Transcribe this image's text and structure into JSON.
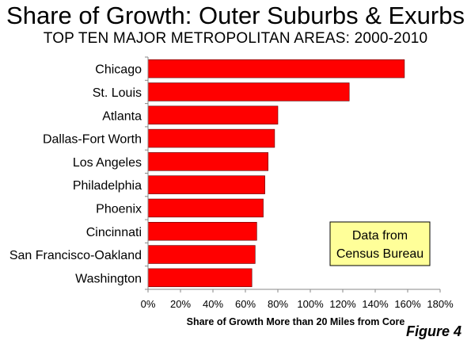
{
  "chart_data": {
    "type": "bar",
    "orientation": "horizontal",
    "title": "Share of Growth: Outer Suburbs & Exurbs",
    "subtitle": "TOP TEN MAJOR METROPOLITAN AREAS: 2000-2010",
    "categories": [
      "Chicago",
      "St. Louis",
      "Atlanta",
      "Dallas-Fort Worth",
      "Los Angeles",
      "Philadelphia",
      "Phoenix",
      "Cincinnati",
      "San Francisco-Oakland",
      "Washington"
    ],
    "values": [
      158,
      124,
      80,
      78,
      74,
      72,
      71,
      67,
      66,
      64
    ],
    "xlabel": "Share of Growth More than 20 Miles from Core",
    "ylabel": "",
    "xlim": [
      0,
      180
    ],
    "x_ticks": [
      "0%",
      "20%",
      "40%",
      "60%",
      "80%",
      "100%",
      "120%",
      "140%",
      "160%",
      "180%"
    ],
    "bar_color": "#ff0000",
    "grid": false,
    "annotation": {
      "line1": "Data from",
      "line2": "Census Bureau",
      "fill": "#ffff99"
    }
  },
  "figure_label": "Figure 4"
}
